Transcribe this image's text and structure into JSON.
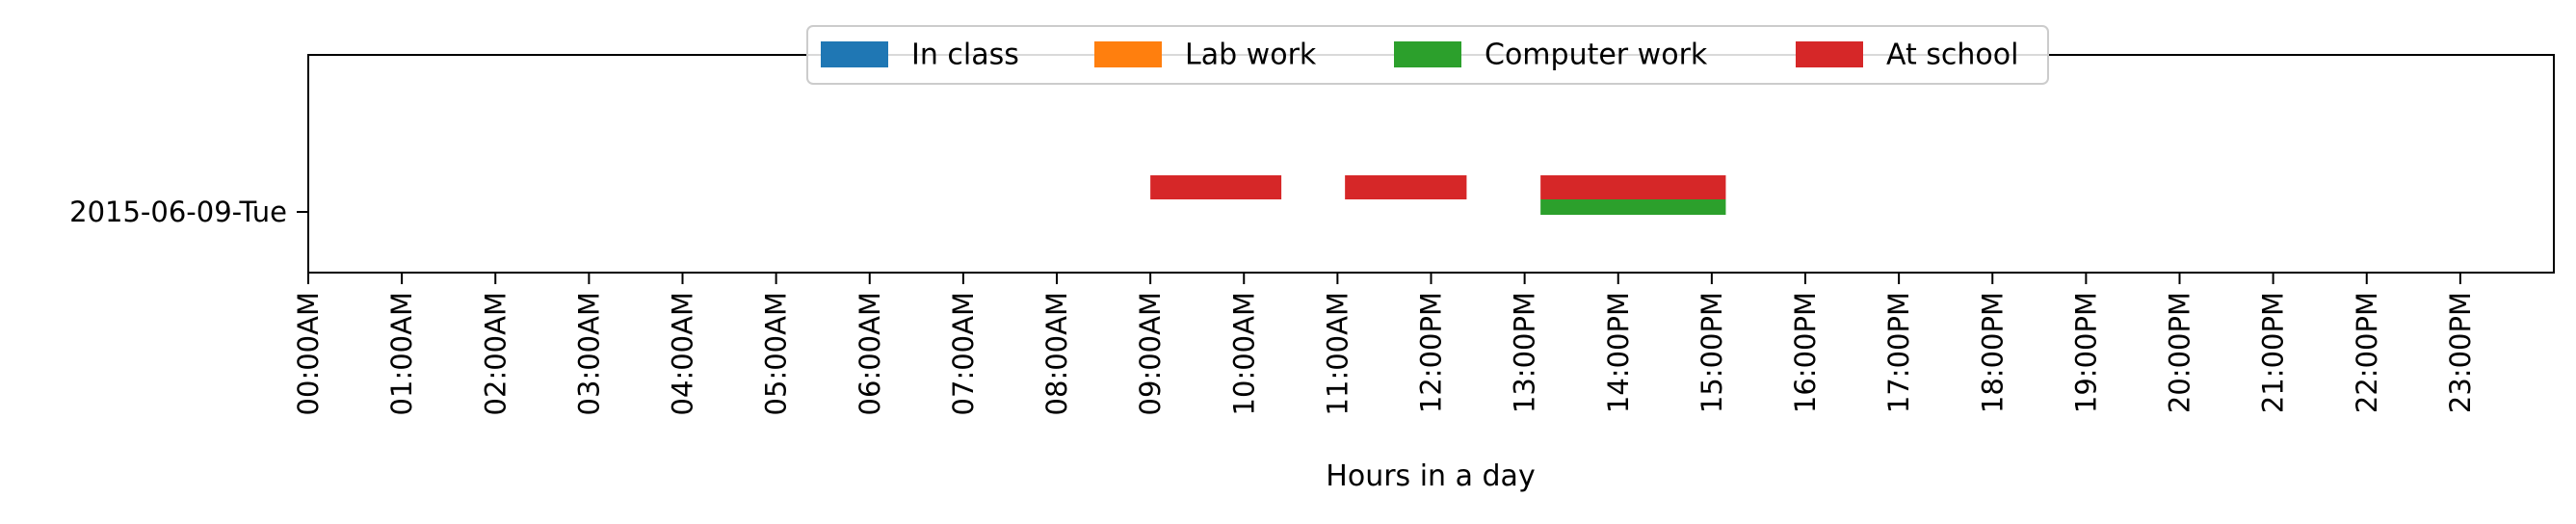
{
  "chart_data": {
    "type": "bar",
    "orientation": "horizontal",
    "title": "",
    "xlabel": "Hours in a day",
    "ylabel": "",
    "xlim": [
      0,
      24
    ],
    "categories": [
      "2015-06-09-Tue"
    ],
    "xticks": [
      {
        "value": 0,
        "label": "00:00AM"
      },
      {
        "value": 1,
        "label": "01:00AM"
      },
      {
        "value": 2,
        "label": "02:00AM"
      },
      {
        "value": 3,
        "label": "03:00AM"
      },
      {
        "value": 4,
        "label": "04:00AM"
      },
      {
        "value": 5,
        "label": "05:00AM"
      },
      {
        "value": 6,
        "label": "06:00AM"
      },
      {
        "value": 7,
        "label": "07:00AM"
      },
      {
        "value": 8,
        "label": "08:00AM"
      },
      {
        "value": 9,
        "label": "09:00AM"
      },
      {
        "value": 10,
        "label": "10:00AM"
      },
      {
        "value": 11,
        "label": "11:00AM"
      },
      {
        "value": 12,
        "label": "12:00PM"
      },
      {
        "value": 13,
        "label": "13:00PM"
      },
      {
        "value": 14,
        "label": "14:00PM"
      },
      {
        "value": 15,
        "label": "15:00PM"
      },
      {
        "value": 16,
        "label": "16:00PM"
      },
      {
        "value": 17,
        "label": "17:00PM"
      },
      {
        "value": 18,
        "label": "18:00PM"
      },
      {
        "value": 19,
        "label": "19:00PM"
      },
      {
        "value": 20,
        "label": "20:00PM"
      },
      {
        "value": 21,
        "label": "21:00PM"
      },
      {
        "value": 22,
        "label": "22:00PM"
      },
      {
        "value": 23,
        "label": "23:00PM"
      }
    ],
    "legend_position": "top-center",
    "grid": false,
    "series": [
      {
        "name": "In class",
        "color": "#1f77b4",
        "segments": []
      },
      {
        "name": "Lab work",
        "color": "#ff7f0e",
        "segments": []
      },
      {
        "name": "Computer work",
        "color": "#2ca02c",
        "segments": [
          {
            "category": "2015-06-09-Tue",
            "start": 13.17,
            "end": 15.15
          }
        ]
      },
      {
        "name": "At school",
        "color": "#d62728",
        "segments": [
          {
            "category": "2015-06-09-Tue",
            "start": 9.0,
            "end": 10.4
          },
          {
            "category": "2015-06-09-Tue",
            "start": 11.08,
            "end": 12.38
          },
          {
            "category": "2015-06-09-Tue",
            "start": 13.17,
            "end": 15.15
          }
        ]
      }
    ]
  }
}
